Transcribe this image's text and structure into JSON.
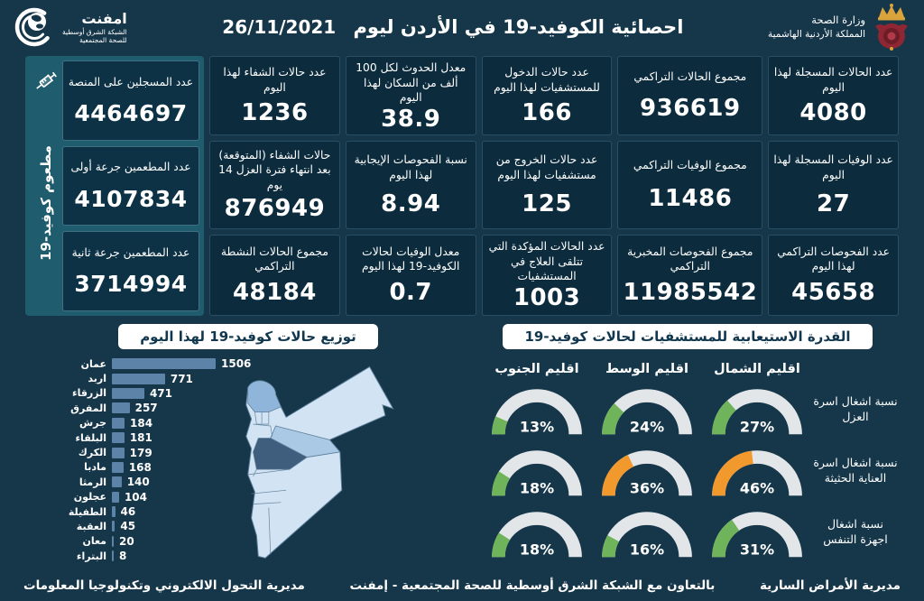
{
  "header": {
    "title": "احصائية الكوفيد-19 في الأردن ليوم",
    "date": "26/11/2021",
    "ministry": {
      "line1": "وزارة الصحة",
      "line2": "المملكة الأردنية الهاشمية"
    },
    "amfnet": {
      "name": "امفنت",
      "line1": "الشبكة الشرق أوسطية",
      "line2": "للصحة المجتمعية"
    }
  },
  "vaccine": {
    "side_label": "مطعوم كوفيد-19",
    "cards": [
      {
        "label": "عدد المسجلين على المنصة",
        "value": "4464697"
      },
      {
        "label": "عدد المطعمين جرعة أولى",
        "value": "4107834"
      },
      {
        "label": "عدد المطعمين جرعة ثانية",
        "value": "3714994"
      }
    ]
  },
  "stats": [
    {
      "label": "عدد الحالات المسجلة لهذا اليوم",
      "value": "4080"
    },
    {
      "label": "مجموع الحالات التراكمي",
      "value": "936619"
    },
    {
      "label": "عدد حالات الدخول للمستشفيات لهذا اليوم",
      "value": "166"
    },
    {
      "label": "معدل الحدوث لكل 100 ألف من السكان لهذا اليوم",
      "value": "38.9"
    },
    {
      "label": "عدد حالات الشفاء لهذا اليوم",
      "value": "1236"
    },
    {
      "label": "عدد الوفيات المسجلة لهذا اليوم",
      "value": "27"
    },
    {
      "label": "مجموع الوفيات التراكمي",
      "value": "11486"
    },
    {
      "label": "عدد حالات الخروج من مستشفيات لهذا اليوم",
      "value": "125"
    },
    {
      "label": "نسبة الفحوصات الإيجابية لهذا اليوم",
      "value": "8.94"
    },
    {
      "label": "حالات الشفاء (المتوقعة) بعد انتهاء فترة العزل 14 يوم",
      "value": "876949"
    },
    {
      "label": "عدد الفحوصات التراكمي لهذا اليوم",
      "value": "45658"
    },
    {
      "label": "مجموع الفحوصات المخبرية التراكمي",
      "value": "11985542"
    },
    {
      "label": "عدد الحالات المؤكدة التي تتلقى العلاج في المستشفيات",
      "value": "1003"
    },
    {
      "label": "معدل الوفيات لحالات الكوفيد-19 لهذا اليوم",
      "value": "0.7"
    },
    {
      "label": "مجموع الحالات النشطة التراكمي",
      "value": "48184"
    }
  ],
  "chart_data": [
    {
      "type": "bar",
      "title": "توزيع حالات كوفيد-19 لهذا اليوم",
      "orientation": "horizontal",
      "categories": [
        "عمان",
        "اربد",
        "الزرقاء",
        "المفرق",
        "جرش",
        "البلقاء",
        "الكرك",
        "مادبا",
        "الرمثا",
        "عجلون",
        "الطفيلة",
        "العقبة",
        "معان",
        "البتراء"
      ],
      "values": [
        1506,
        771,
        471,
        257,
        184,
        181,
        179,
        168,
        140,
        104,
        46,
        45,
        20,
        8
      ],
      "bar_color": "#5d83a8",
      "value_labels": true
    },
    {
      "type": "gauge",
      "title": "القدرة الاستيعابية للمستشفيات لحالات كوفيد-19",
      "unit": "%",
      "columns": [
        "اقليم الشمال",
        "اقليم الوسط",
        "اقليم الجنوب"
      ],
      "rows": [
        {
          "label": "نسبة اشغال اسرة العزل",
          "values": [
            27,
            24,
            13
          ],
          "colors": [
            "green",
            "green",
            "green"
          ]
        },
        {
          "label": "نسبة اشغال اسرة العناية الحثيثة",
          "values": [
            46,
            36,
            18
          ],
          "colors": [
            "orange",
            "orange",
            "green"
          ]
        },
        {
          "label": "نسبة اشغال اجهزة التنفس",
          "values": [
            31,
            16,
            18
          ],
          "colors": [
            "green",
            "green",
            "green"
          ]
        }
      ]
    }
  ],
  "footer": {
    "right": "مديرية الأمراض السارية",
    "center": "بالتعاون مع الشبكة الشرق أوسطية للصحة المجتمعية - إمفنت",
    "left": "مديرية التحول الالكتروني وتكنولوجيا المعلومات"
  },
  "colors": {
    "background": "#16374a",
    "card_bg": "#0c2b3d",
    "vaccine_panel": "#1e5c6e",
    "bar": "#5d83a8",
    "gauge_green": "#6fb35a",
    "gauge_orange": "#f2992e",
    "gauge_track": "#e3e6e9",
    "map_light": "#d2e4f3",
    "map_medium": "#8fb6da",
    "map_band": "#aac9e4",
    "map_dark": "#3f5e7d"
  }
}
